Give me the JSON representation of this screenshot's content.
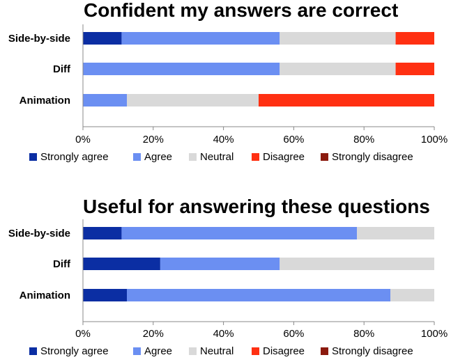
{
  "colors": {
    "strongly_agree": "#0b2ea3",
    "agree": "#6b8ff2",
    "neutral": "#d9d9d9",
    "disagree": "#ff3012",
    "strongly_disagree": "#8b1a0e"
  },
  "chart_data": [
    {
      "type": "bar",
      "orientation": "horizontal",
      "stacked": "percent",
      "title": "Confident my answers are correct",
      "categories": [
        "Side-by-side",
        "Diff",
        "Animation"
      ],
      "series": [
        {
          "name": "Strongly agree",
          "color": "#0b2ea3",
          "values": [
            11,
            0,
            0
          ]
        },
        {
          "name": "Agree",
          "color": "#6b8ff2",
          "values": [
            45,
            56,
            12.5
          ]
        },
        {
          "name": "Neutral",
          "color": "#d9d9d9",
          "values": [
            33,
            33,
            37.5
          ]
        },
        {
          "name": "Disagree",
          "color": "#ff3012",
          "values": [
            11,
            11,
            50
          ]
        },
        {
          "name": "Strongly disagree",
          "color": "#8b1a0e",
          "values": [
            0,
            0,
            0
          ]
        }
      ],
      "xlim": [
        0,
        100
      ],
      "xticks": [
        "0%",
        "20%",
        "40%",
        "60%",
        "80%",
        "100%"
      ],
      "grid": false,
      "legend": "bottom"
    },
    {
      "type": "bar",
      "orientation": "horizontal",
      "stacked": "percent",
      "title": "Useful for answering these questions",
      "categories": [
        "Side-by-side",
        "Diff",
        "Animation"
      ],
      "series": [
        {
          "name": "Strongly agree",
          "color": "#0b2ea3",
          "values": [
            11,
            22,
            12.5
          ]
        },
        {
          "name": "Agree",
          "color": "#6b8ff2",
          "values": [
            67,
            34,
            75
          ]
        },
        {
          "name": "Neutral",
          "color": "#d9d9d9",
          "values": [
            22,
            44,
            12.5
          ]
        },
        {
          "name": "Disagree",
          "color": "#ff3012",
          "values": [
            0,
            0,
            0
          ]
        },
        {
          "name": "Strongly disagree",
          "color": "#8b1a0e",
          "values": [
            0,
            0,
            0
          ]
        }
      ],
      "xlim": [
        0,
        100
      ],
      "xticks": [
        "0%",
        "20%",
        "40%",
        "60%",
        "80%",
        "100%"
      ],
      "grid": false,
      "legend": "bottom"
    }
  ]
}
